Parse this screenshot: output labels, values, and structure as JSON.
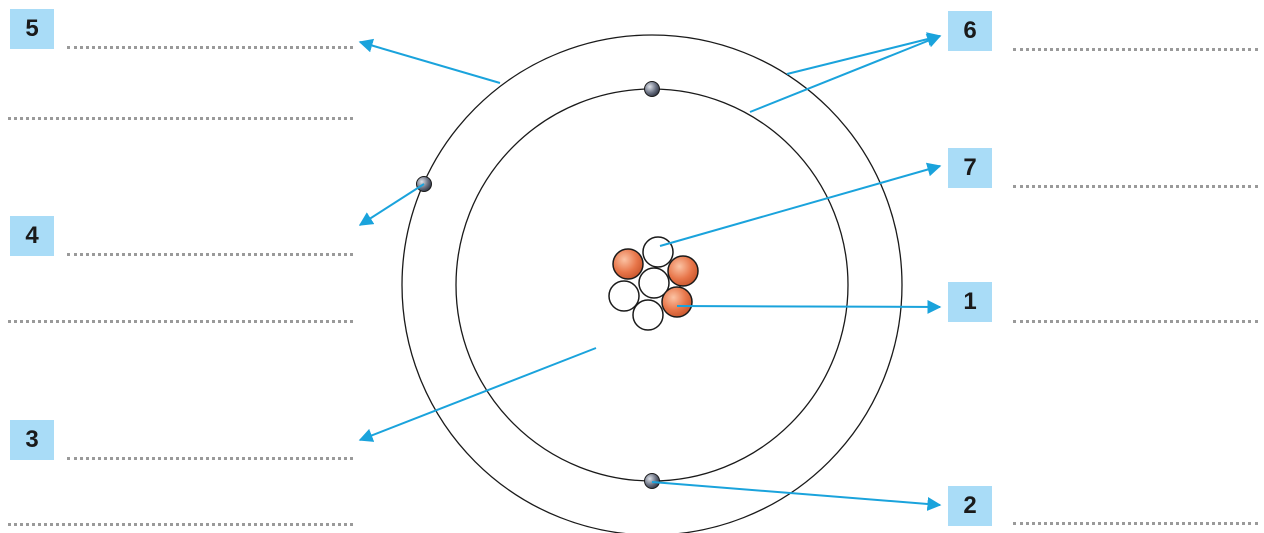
{
  "labels": {
    "n1": "1",
    "n2": "2",
    "n3": "3",
    "n4": "4",
    "n5": "5",
    "n6": "6",
    "n7": "7"
  },
  "colors": {
    "label_bg": "#a9dcf7",
    "arrow": "#1aa3dc",
    "orbit": "#1a1a1a",
    "proton": "#e8764a",
    "neutron": "#ffffff",
    "electron": "#5a6070",
    "dots": "#9a9a9a"
  }
}
